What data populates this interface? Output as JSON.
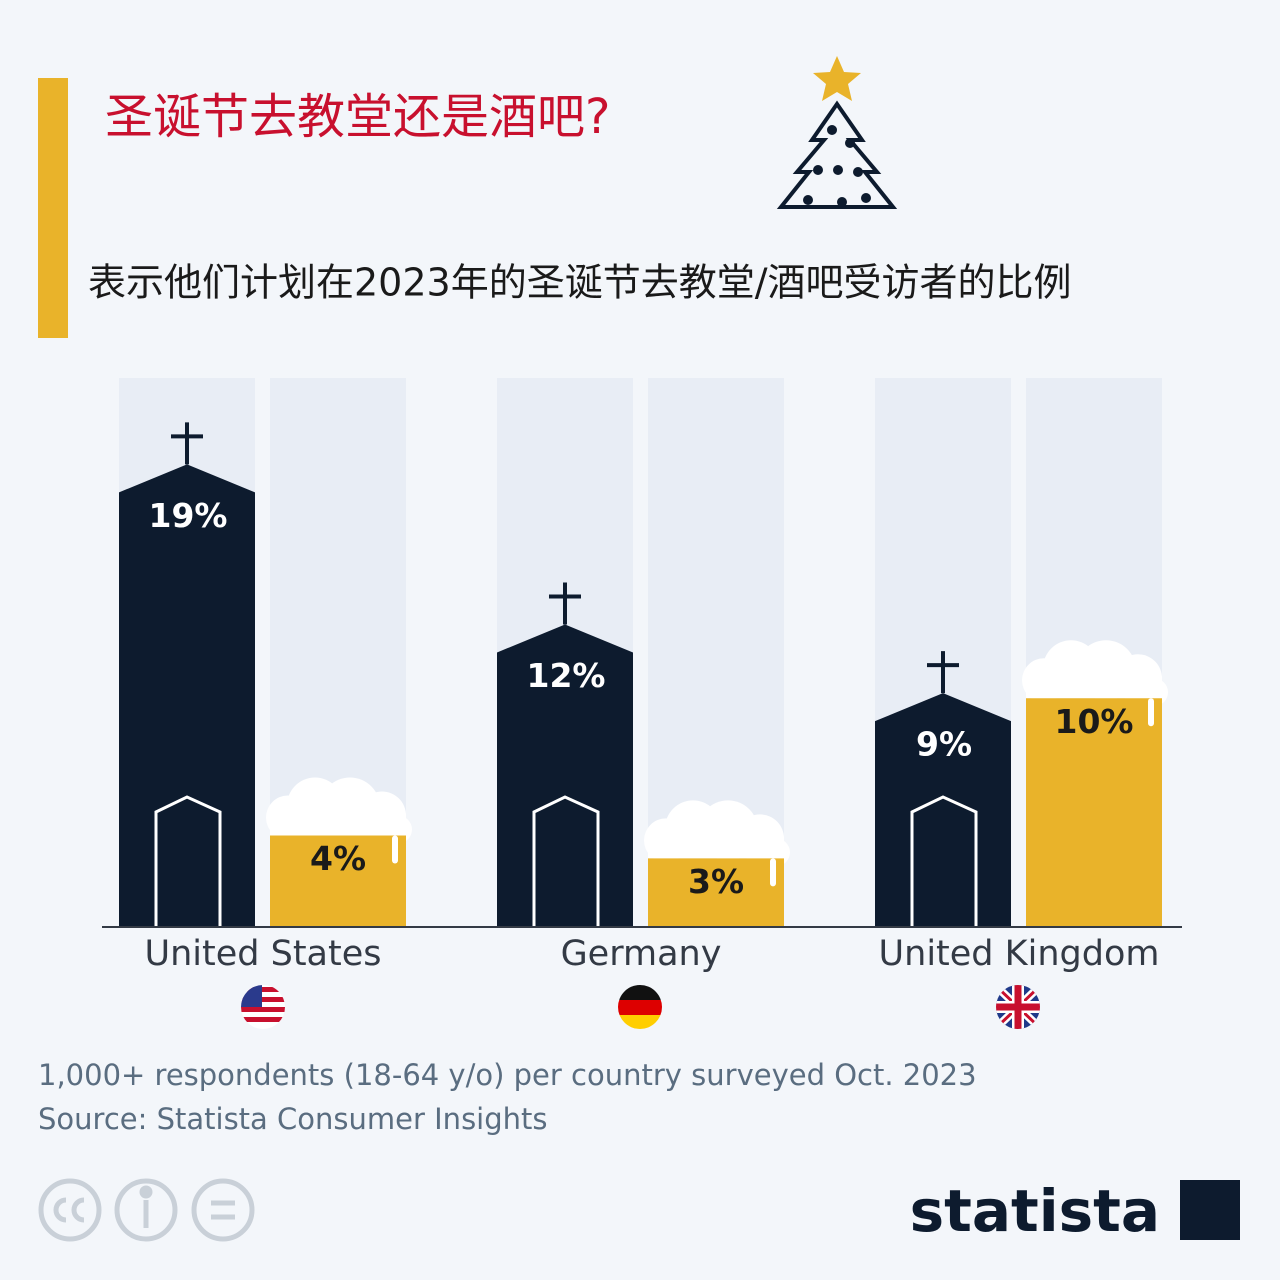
{
  "chart_data": {
    "type": "church-beer",
    "title": "圣诞节去教堂还是酒吧?",
    "subtitle": "表示他们计划在2023年的圣诞节去教堂/酒吧受访者的比例",
    "categories": [
      "United States",
      "Germany",
      "United Kingdom"
    ],
    "series": [
      {
        "color": "#0d1b2e",
        "values": [
          19,
          12,
          9
        ],
        "value_labels": [
          "19%",
          "12%",
          "9%"
        ]
      },
      {
        "color": "#e9b32a",
        "values": [
          4,
          3,
          10
        ],
        "value_labels": [
          "4%",
          "3%",
          "10%"
        ]
      }
    ],
    "ylim": [
      0,
      24
    ],
    "note": "1,000+ respondents (18-64 y/o) per country surveyed Oct. 2023",
    "source": "Source: Statista Consumer Insights",
    "logo": "statista"
  }
}
